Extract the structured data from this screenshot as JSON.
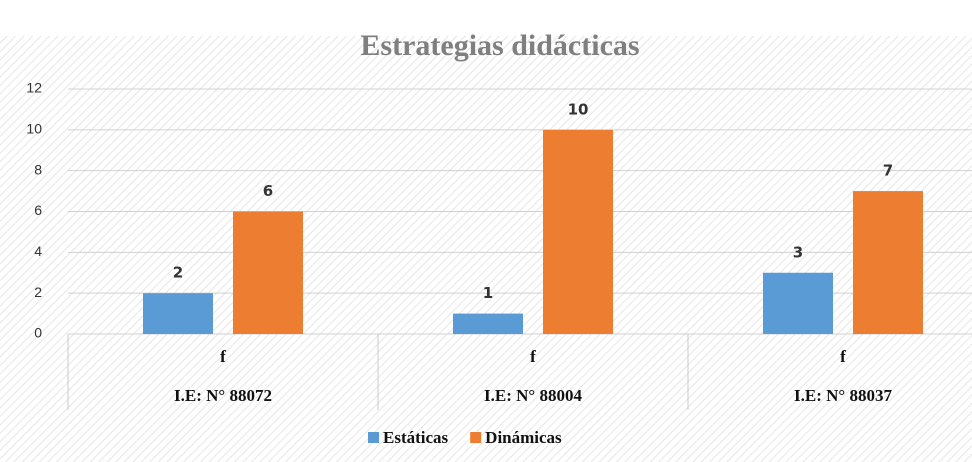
{
  "chart_data": {
    "type": "bar",
    "title": "Estrategias didácticas",
    "categories": [
      "f",
      "f",
      "f"
    ],
    "groups": [
      "I.E: N° 88072",
      "I.E: N° 88004",
      "I.E: N° 88037"
    ],
    "series": [
      {
        "name": "Estáticas",
        "color": "#5b9bd5",
        "values": [
          2,
          1,
          3
        ]
      },
      {
        "name": "Dinámicas",
        "color": "#ed7d31",
        "values": [
          6,
          10,
          7
        ]
      }
    ],
    "ylim": [
      0,
      12
    ],
    "yticks": [
      0,
      2,
      4,
      6,
      8,
      10,
      12
    ],
    "grid": true,
    "legend": "bottom"
  }
}
